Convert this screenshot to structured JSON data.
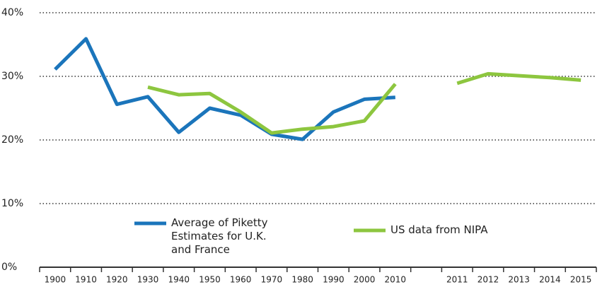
{
  "chart_data": {
    "type": "line",
    "categories": [
      "1900",
      "1910",
      "1920",
      "1930",
      "1940",
      "1950",
      "1960",
      "1970",
      "1980",
      "1990",
      "2000",
      "2010",
      null,
      "2011",
      "2012",
      "2013",
      "2014",
      "2015"
    ],
    "series": [
      {
        "name": "Average of Piketty Estimates for U.K. and France",
        "color": "#1b75bb",
        "values": [
          31.1,
          35.9,
          25.6,
          26.8,
          21.2,
          25.0,
          23.9,
          20.9,
          20.1,
          24.4,
          26.4,
          26.7,
          null,
          null,
          null,
          null,
          null,
          null
        ]
      },
      {
        "name": "US data from NIPA",
        "color": "#8dc63f",
        "values": [
          null,
          null,
          null,
          28.3,
          27.1,
          27.3,
          24.4,
          21.1,
          21.7,
          22.1,
          23.0,
          28.8,
          null,
          28.9,
          30.4,
          30.1,
          29.8,
          29.4
        ]
      }
    ],
    "ylim": [
      0,
      40
    ],
    "yticks": [
      {
        "value": 0,
        "label": "0%"
      },
      {
        "value": 10,
        "label": "10%"
      },
      {
        "value": 20,
        "label": "20%"
      },
      {
        "value": 30,
        "label": "30%"
      },
      {
        "value": 40,
        "label": "40%"
      }
    ],
    "grid": true
  }
}
